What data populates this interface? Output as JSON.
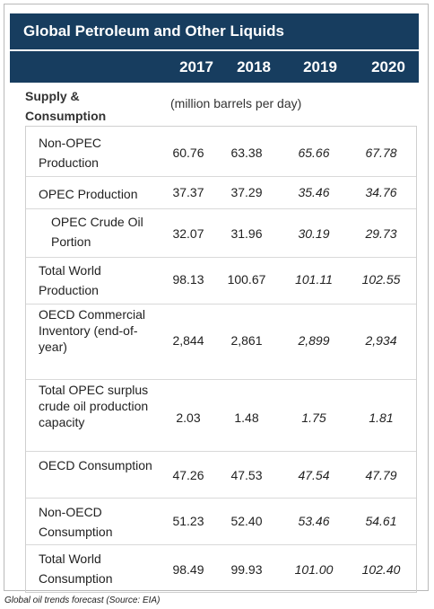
{
  "title": "Global Petroleum and Other Liquids",
  "years": [
    "2017",
    "2018",
    "2019",
    "2020"
  ],
  "section_label": "Supply &\nConsumption",
  "unit": "(million barrels per day)",
  "rows": [
    {
      "label": "Non-OPEC Production",
      "values": [
        "60.76",
        "63.38",
        "65.66",
        "67.78"
      ]
    },
    {
      "label": "OPEC Production",
      "values": [
        "37.37",
        "37.29",
        "35.46",
        "34.76"
      ]
    },
    {
      "label": "OPEC Crude Oil Portion",
      "values": [
        "32.07",
        "31.96",
        "30.19",
        "29.73"
      ]
    },
    {
      "label": "Total World Production",
      "values": [
        "98.13",
        "100.67",
        "101.11",
        "102.55"
      ]
    },
    {
      "label": "OECD Commercial Inventory (end-of-year)",
      "values": [
        "2,844",
        "2,861",
        "2,899",
        "2,934"
      ]
    },
    {
      "label": "Total OPEC surplus crude oil production capacity",
      "values": [
        "2.03",
        "1.48",
        "1.75",
        "1.81"
      ]
    },
    {
      "label": "OECD Consumption",
      "values": [
        "47.26",
        "47.53",
        "47.54",
        "47.79"
      ]
    },
    {
      "label": "Non-OECD Consumption",
      "values": [
        "51.23",
        "52.40",
        "53.46",
        "54.61"
      ]
    },
    {
      "label": "Total World Consumption",
      "values": [
        "98.49",
        "99.93",
        "101.00",
        "102.40"
      ]
    }
  ],
  "caption": "Global oil trends forecast (Source: EIA)",
  "colors": {
    "header_bg": "#173d5f",
    "header_text": "#ffffff",
    "border": "#cfcfcf"
  }
}
